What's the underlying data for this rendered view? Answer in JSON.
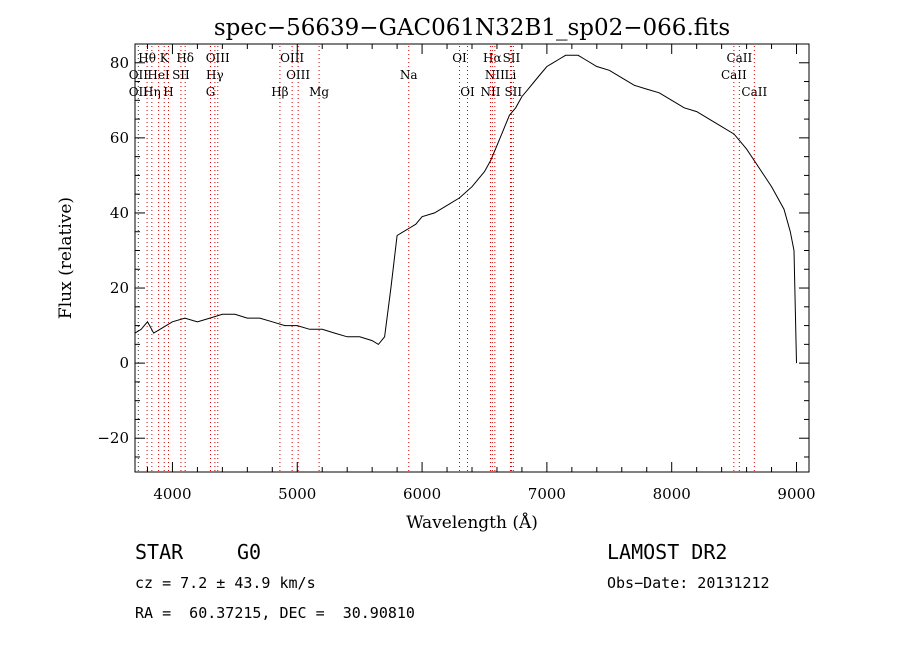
{
  "chart_data": {
    "type": "line",
    "title": "spec−56639−GAC061N32B1_sp02−066.fits",
    "xlabel": "Wavelength (Å)",
    "ylabel": "Flux (relative)",
    "xlim": [
      3700,
      9100
    ],
    "ylim": [
      -29,
      85
    ],
    "x_ticks": [
      4000,
      5000,
      6000,
      7000,
      8000,
      9000
    ],
    "x_tick_labels": [
      "4000",
      "5000",
      "6000",
      "7000",
      "8000",
      "9000"
    ],
    "y_ticks": [
      -20,
      0,
      20,
      40,
      60,
      80
    ],
    "y_tick_labels": [
      "−20",
      "0",
      "20",
      "40",
      "60",
      "80"
    ],
    "grid": false,
    "series": [
      {
        "color": "#000000",
        "x": [
          3700,
          3750,
          3800,
          3850,
          3900,
          3950,
          4000,
          4100,
          4200,
          4300,
          4400,
          4500,
          4600,
          4700,
          4800,
          4900,
          5000,
          5100,
          5200,
          5300,
          5400,
          5500,
          5600,
          5650,
          5700,
          5750,
          5800,
          5850,
          5900,
          5950,
          6000,
          6100,
          6200,
          6300,
          6400,
          6500,
          6550,
          6600,
          6650,
          6700,
          6750,
          6800,
          6850,
          6900,
          6950,
          7000,
          7050,
          7100,
          7150,
          7200,
          7250,
          7300,
          7400,
          7500,
          7600,
          7700,
          7800,
          7900,
          8000,
          8100,
          8200,
          8300,
          8400,
          8500,
          8600,
          8700,
          8800,
          8900,
          8950,
          8980,
          9000
        ],
        "y": [
          8,
          9,
          11,
          8,
          9,
          10,
          11,
          12,
          11,
          12,
          13,
          13,
          12,
          12,
          11,
          10,
          10,
          9,
          9,
          8,
          7,
          7,
          6,
          5,
          7,
          20,
          34,
          35,
          36,
          37,
          39,
          40,
          42,
          44,
          47,
          51,
          54,
          58,
          62,
          66,
          68,
          71,
          73,
          75,
          77,
          79,
          80,
          81,
          82,
          82,
          82,
          81,
          79,
          78,
          76,
          74,
          73,
          72,
          70,
          68,
          67,
          65,
          63,
          61,
          57,
          52,
          47,
          41,
          35,
          30,
          0
        ]
      }
    ],
    "line_markers": [
      {
        "label": "Hθ",
        "x": 3797,
        "row": 0,
        "color": "#cc0000"
      },
      {
        "label": "K",
        "x": 3934,
        "row": 0,
        "color": "#cc0000"
      },
      {
        "label": "Hδ",
        "x": 4102,
        "row": 0,
        "color": "#cc0000"
      },
      {
        "label": "OIII",
        "x": 4363,
        "row": 0,
        "color": "#cc0000"
      },
      {
        "label": "OIII",
        "x": 4959,
        "row": 0,
        "color": "#cc0000"
      },
      {
        "label": "OI",
        "x": 6300,
        "row": 0,
        "color": "#cc0000"
      },
      {
        "label": "Hα",
        "x": 6563,
        "row": 0,
        "color": "#cc0000"
      },
      {
        "label": "SII",
        "x": 6716,
        "row": 0,
        "color": "#cc0000"
      },
      {
        "label": "CaII",
        "x": 8542,
        "row": 0,
        "color": "#cc0000"
      },
      {
        "label": "OII",
        "x": 3727,
        "row": 1,
        "color": "#555555"
      },
      {
        "label": "HeI",
        "x": 3889,
        "row": 1,
        "color": "#cc0000"
      },
      {
        "label": "SII",
        "x": 4068,
        "row": 1,
        "color": "#cc0000"
      },
      {
        "label": "Hγ",
        "x": 4340,
        "row": 1,
        "color": "#cc0000"
      },
      {
        "label": "OIII",
        "x": 5007,
        "row": 1,
        "color": "#cc0000"
      },
      {
        "label": "Na",
        "x": 5893,
        "row": 1,
        "color": "#cc0000"
      },
      {
        "label": "NII",
        "x": 6583,
        "row": 1,
        "color": "#cc0000"
      },
      {
        "label": "Li",
        "x": 6708,
        "row": 1,
        "color": "#cc0000"
      },
      {
        "label": "CaII",
        "x": 8498,
        "row": 1,
        "color": "#cc0000"
      },
      {
        "label": "OII",
        "x": 3727,
        "row": 2,
        "color": "#555555"
      },
      {
        "label": "Hη",
        "x": 3835,
        "row": 2,
        "color": "#cc0000"
      },
      {
        "label": "H",
        "x": 3968,
        "row": 2,
        "color": "#cc0000"
      },
      {
        "label": "G",
        "x": 4305,
        "row": 2,
        "color": "#cc0000"
      },
      {
        "label": "Hβ",
        "x": 4861,
        "row": 2,
        "color": "#cc0000"
      },
      {
        "label": "Mg",
        "x": 5175,
        "row": 2,
        "color": "#cc0000"
      },
      {
        "label": "OI",
        "x": 6364,
        "row": 2,
        "color": "#cc0000"
      },
      {
        "label": "NII",
        "x": 6548,
        "row": 2,
        "color": "#cc0000"
      },
      {
        "label": "SII",
        "x": 6731,
        "row": 2,
        "color": "#cc0000"
      },
      {
        "label": "CaII",
        "x": 8662,
        "row": 2,
        "color": "#cc0000"
      }
    ]
  },
  "info": {
    "object_class": "STAR",
    "subclass": "G0",
    "survey": "LAMOST DR2",
    "redshift": "cz = 7.2 ± 43.9 km/s",
    "obs_date": "Obs−Date: 20131212",
    "coords": "RA =  60.37215, DEC =  30.90810"
  }
}
